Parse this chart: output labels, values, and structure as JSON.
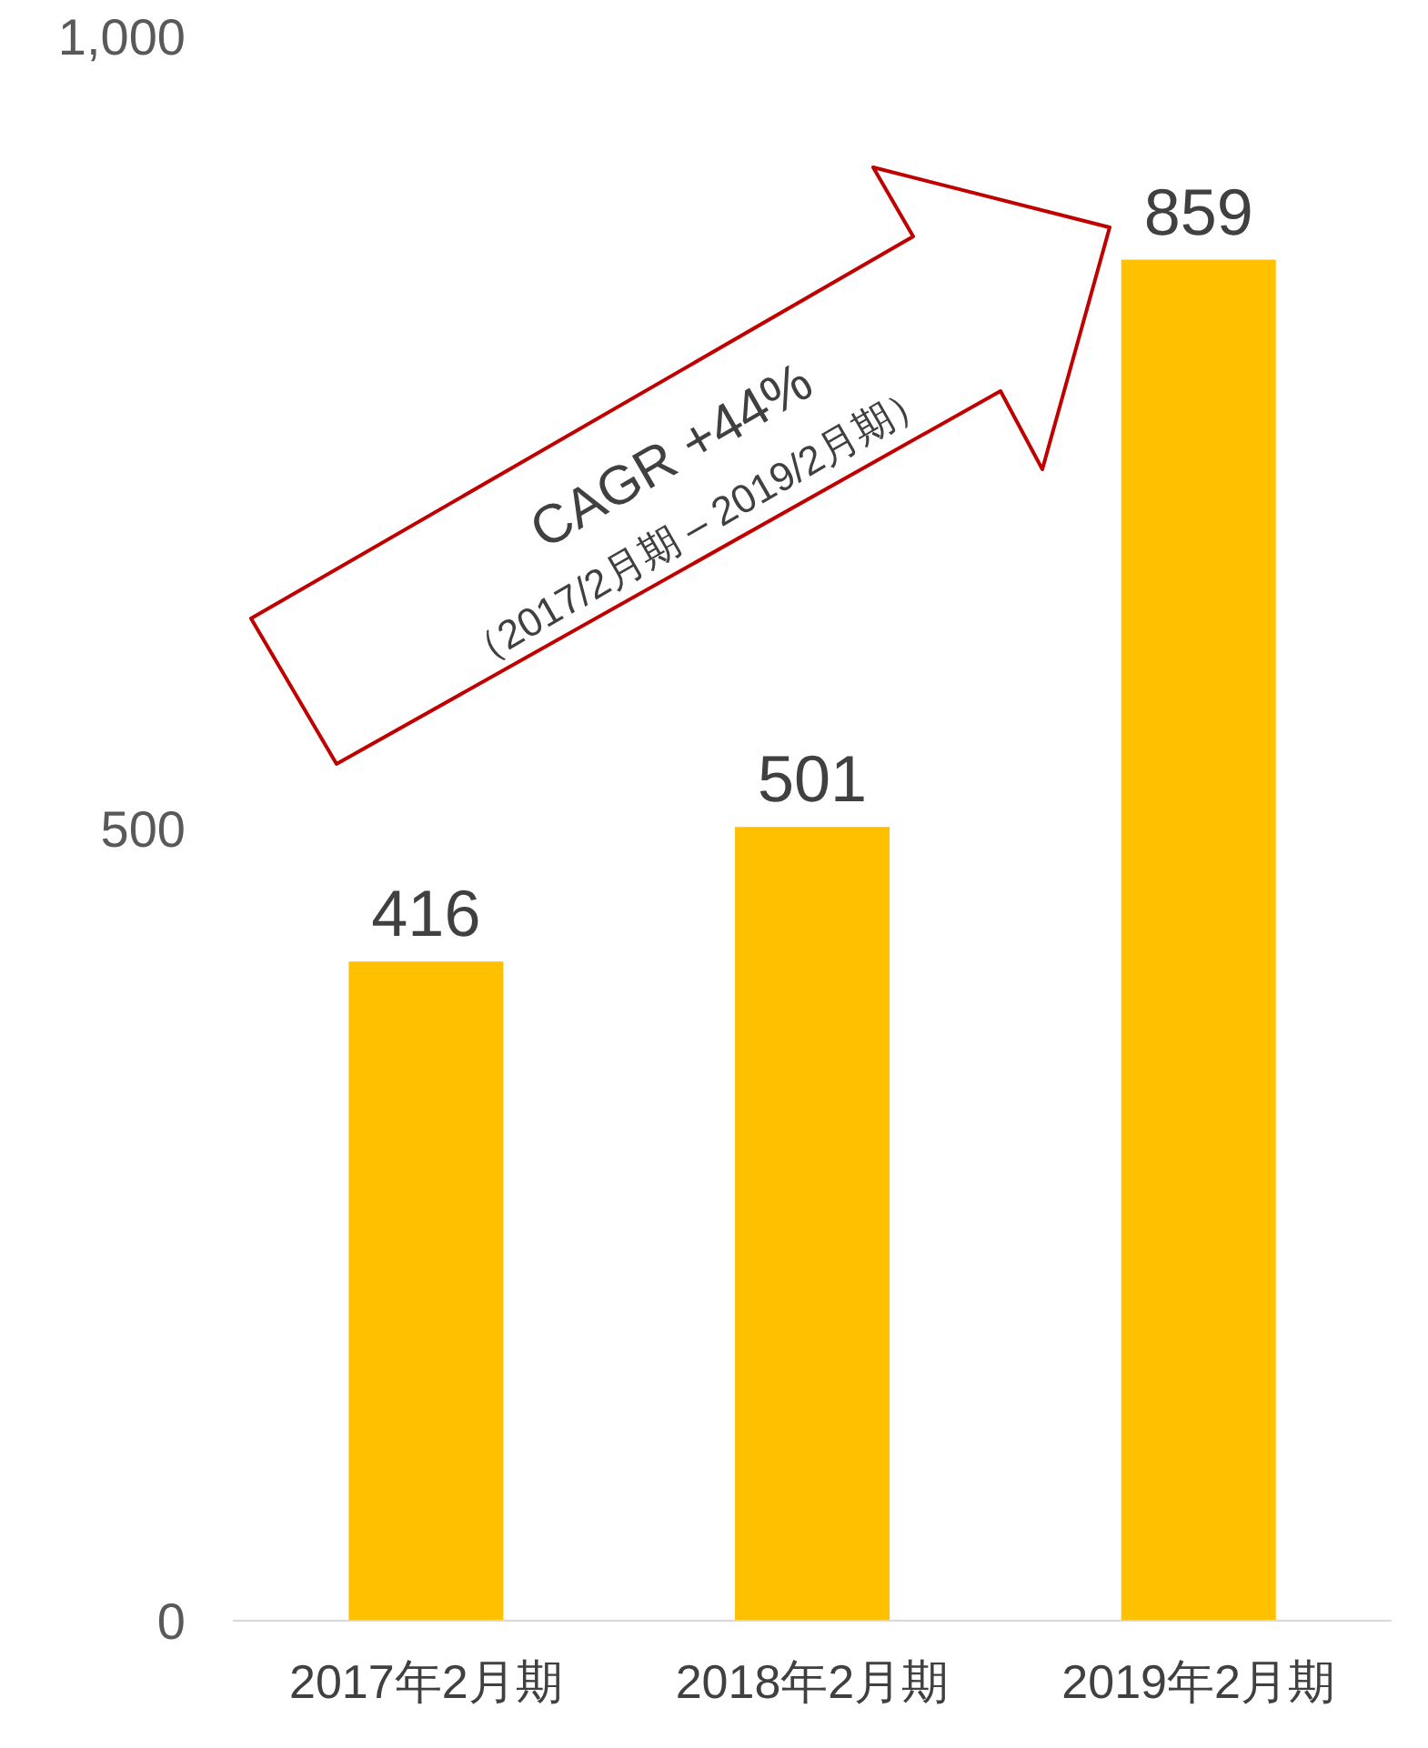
{
  "chart_data": {
    "type": "bar",
    "categories": [
      "2017年2月期",
      "2018年2月期",
      "2019年2月期"
    ],
    "values": [
      416,
      501,
      859
    ],
    "color": "#ffc000",
    "data_labels": true,
    "ylim": [
      0,
      1000
    ],
    "yticks": [
      0,
      500,
      {
        "value": 1000,
        "label": "1,000"
      }
    ],
    "grid": false,
    "annotations": [
      "CAGR +44%",
      "（2017/2月期 – 2019/2月期）"
    ]
  }
}
